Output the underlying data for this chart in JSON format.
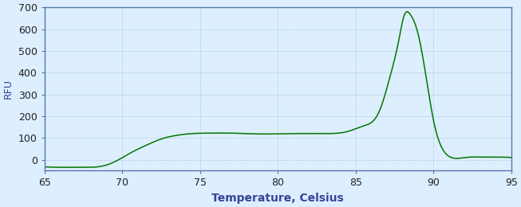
{
  "title": "",
  "xlabel": "Temperature, Celsius",
  "ylabel": "RFU",
  "xlim": [
    65,
    95
  ],
  "ylim": [
    -50,
    700
  ],
  "xticks": [
    65,
    70,
    75,
    80,
    85,
    90,
    95
  ],
  "yticks": [
    0,
    100,
    200,
    300,
    400,
    500,
    600,
    700
  ],
  "line_color": "#007700",
  "bg_color": "#ddeeff",
  "grid_color": "#7799bb",
  "xlabel_fontsize": 10,
  "ylabel_fontsize": 9,
  "tick_fontsize": 9,
  "control_x": [
    65.0,
    66.0,
    67.5,
    68.5,
    69.5,
    70.5,
    71.5,
    72.5,
    73.5,
    74.5,
    75.5,
    77.0,
    79.0,
    81.0,
    83.0,
    84.5,
    85.5,
    86.5,
    87.2,
    87.8,
    88.1,
    88.5,
    89.0,
    89.5,
    90.0,
    90.5,
    91.0,
    92.0,
    93.0,
    94.0,
    95.0
  ],
  "control_y": [
    -33,
    -35,
    -35,
    -32,
    -10,
    30,
    65,
    95,
    112,
    120,
    122,
    122,
    118,
    120,
    120,
    130,
    155,
    220,
    380,
    560,
    660,
    668,
    580,
    390,
    180,
    60,
    15,
    10,
    12,
    12,
    10
  ]
}
